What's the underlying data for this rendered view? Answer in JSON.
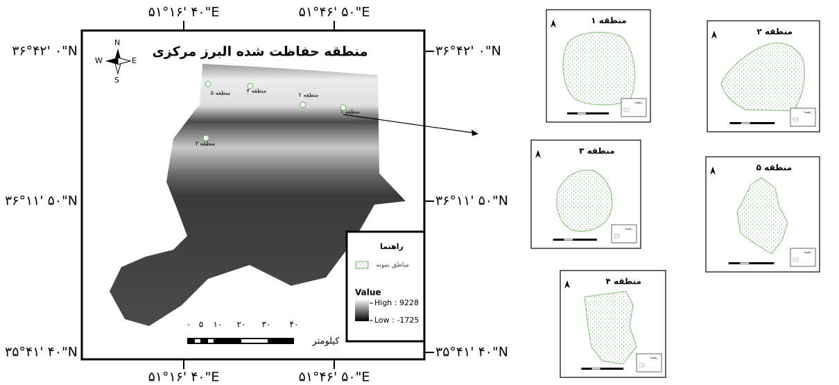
{
  "main_map": {
    "title": "منطقه حفاظت شده البرز مرکزی",
    "coordinates": {
      "top": [
        "۵۱°۱۶' ۴۰\"E",
        "۵۱°۴۶' ۵۰\"E"
      ],
      "bottom": [
        "۵۱°۱۶' ۴۰\"E",
        "۵۱°۴۶' ۵۰\"E"
      ],
      "left": [
        "۳۶°۴۲' ۰\"N",
        "۳۶°۱۱' ۵۰\"N",
        "۳۵°۴۱' ۴۰\"N"
      ],
      "right": [
        "۳۶°۴۲' ۰\"N",
        "۳۶°۱۱' ۵۰\"N",
        "۳۵°۴۱' ۴۰\"N"
      ]
    },
    "compass": {
      "n": "N",
      "s": "S",
      "e": "E",
      "w": "W"
    },
    "sites": [
      "منطقه ۱",
      "منطقه ۲",
      "منطقه ۳",
      "منطقه ۴",
      "منطقه ۵"
    ],
    "legend": {
      "title": "راهنما",
      "sample_areas": "مناطق نمونه",
      "value_label": "Value",
      "high": "High : 9228",
      "low": "Low : -1725"
    },
    "scale": {
      "ticks": [
        "۰",
        "۵",
        "۱۰",
        "۲۰",
        "۳۰",
        "۴۰"
      ],
      "unit": "کیلومتر"
    }
  },
  "insets": [
    {
      "title": "منطقه ۱",
      "legend": "راهنما"
    },
    {
      "title": "منطقه ۲",
      "legend": "راهنما"
    },
    {
      "title": "منطقه ۳",
      "legend": "راهنما"
    },
    {
      "title": "منطقه ۴",
      "legend": "راهنما"
    },
    {
      "title": "منطقه ۵",
      "legend": "راهنما"
    }
  ]
}
